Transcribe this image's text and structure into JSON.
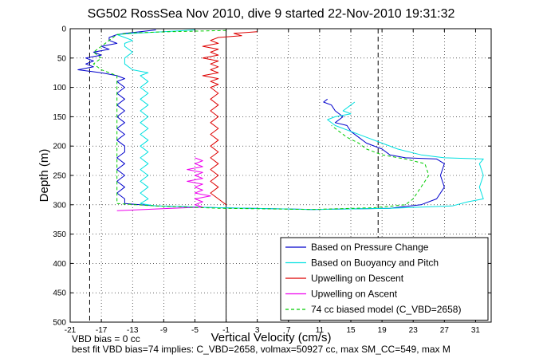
{
  "chart_data": {
    "type": "line",
    "title": "SG502 RossSea Nov 2010, dive 9 started 22-Nov-2010 19:31:32",
    "xlabel": "Vertical Velocity (cm/s)",
    "ylabel": "Depth (m)",
    "xlim": [
      -21,
      33
    ],
    "ylim": [
      500,
      0
    ],
    "x_ticks": [
      "-21",
      "-17",
      "-13",
      "-9",
      "-5",
      "-1",
      "3",
      "7",
      "11",
      "15",
      "19",
      "23",
      "27",
      "31"
    ],
    "y_ticks": [
      "0",
      "50",
      "100",
      "150",
      "200",
      "250",
      "300",
      "350",
      "400",
      "450",
      "500"
    ],
    "grid": true,
    "legend_position": "bottom-right",
    "reference_lines": [
      {
        "x": -1,
        "style": "solid"
      },
      {
        "x": -18.5,
        "style": "dashed"
      },
      {
        "x": 18.5,
        "style": "dashed"
      }
    ],
    "series": [
      {
        "name": "Based on Pressure Change",
        "color": "#0000cc",
        "style": "solid",
        "points": [
          [
            -10,
            2
          ],
          [
            -12,
            5
          ],
          [
            -14,
            8
          ],
          [
            -15,
            10
          ],
          [
            -16,
            15
          ],
          [
            -16,
            20
          ],
          [
            -15,
            25
          ],
          [
            -17,
            30
          ],
          [
            -16,
            35
          ],
          [
            -18,
            40
          ],
          [
            -17,
            45
          ],
          [
            -19,
            50
          ],
          [
            -18,
            55
          ],
          [
            -19,
            60
          ],
          [
            -18,
            65
          ],
          [
            -20,
            70
          ],
          [
            -17,
            75
          ],
          [
            -15,
            80
          ],
          [
            -14,
            85
          ],
          [
            -15,
            90
          ],
          [
            -14,
            100
          ],
          [
            -15,
            110
          ],
          [
            -14,
            120
          ],
          [
            -15,
            130
          ],
          [
            -14,
            140
          ],
          [
            -15,
            150
          ],
          [
            -14,
            160
          ],
          [
            -15,
            170
          ],
          [
            -14,
            180
          ],
          [
            -15,
            190
          ],
          [
            -14,
            200
          ],
          [
            -14,
            210
          ],
          [
            -15,
            220
          ],
          [
            -14,
            230
          ],
          [
            -15,
            240
          ],
          [
            -14,
            250
          ],
          [
            -15,
            260
          ],
          [
            -14,
            270
          ],
          [
            -15,
            280
          ],
          [
            -14,
            290
          ],
          [
            -14,
            298
          ],
          [
            -10,
            302
          ],
          [
            -2,
            305
          ],
          [
            10,
            308
          ],
          [
            20,
            306
          ],
          [
            24,
            300
          ],
          [
            26,
            290
          ],
          [
            27,
            270
          ],
          [
            26.5,
            250
          ],
          [
            27,
            230
          ],
          [
            26,
            222
          ],
          [
            22,
            220
          ],
          [
            20,
            215
          ],
          [
            19,
            205
          ],
          [
            17,
            195
          ],
          [
            16,
            185
          ],
          [
            15,
            175
          ],
          [
            14.5,
            165
          ],
          [
            13,
            160
          ],
          [
            14,
            150
          ],
          [
            13,
            140
          ],
          [
            12.5,
            130
          ],
          [
            11.5,
            125
          ],
          [
            12,
            120
          ]
        ]
      },
      {
        "name": "Based on Buoyancy and Pitch",
        "color": "#00e0e0",
        "style": "solid",
        "points": [
          [
            -5,
            2
          ],
          [
            -9,
            5
          ],
          [
            -13,
            8
          ],
          [
            -15,
            10
          ],
          [
            -14,
            15
          ],
          [
            -13,
            20
          ],
          [
            -14,
            25
          ],
          [
            -14,
            30
          ],
          [
            -13,
            40
          ],
          [
            -14,
            50
          ],
          [
            -14,
            60
          ],
          [
            -13,
            70
          ],
          [
            -11,
            75
          ],
          [
            -12,
            80
          ],
          [
            -11,
            90
          ],
          [
            -12,
            100
          ],
          [
            -11,
            110
          ],
          [
            -12,
            120
          ],
          [
            -11,
            130
          ],
          [
            -12,
            140
          ],
          [
            -11,
            150
          ],
          [
            -12,
            160
          ],
          [
            -11,
            170
          ],
          [
            -12,
            180
          ],
          [
            -11,
            190
          ],
          [
            -12,
            200
          ],
          [
            -11,
            210
          ],
          [
            -12,
            220
          ],
          [
            -11,
            230
          ],
          [
            -12,
            240
          ],
          [
            -11,
            250
          ],
          [
            -12,
            260
          ],
          [
            -11,
            270
          ],
          [
            -12,
            280
          ],
          [
            -11,
            290
          ],
          [
            -12,
            298
          ],
          [
            -10,
            302
          ],
          [
            -2,
            305
          ],
          [
            10,
            308
          ],
          [
            20,
            306
          ],
          [
            28,
            302
          ],
          [
            30,
            295
          ],
          [
            32,
            290
          ],
          [
            31.5,
            270
          ],
          [
            32,
            250
          ],
          [
            31.5,
            230
          ],
          [
            32,
            222
          ],
          [
            27,
            220
          ],
          [
            24,
            215
          ],
          [
            21,
            205
          ],
          [
            19,
            195
          ],
          [
            17,
            185
          ],
          [
            15,
            175
          ],
          [
            13,
            165
          ],
          [
            12,
            155
          ],
          [
            13,
            150
          ],
          [
            15,
            145
          ],
          [
            14,
            140
          ],
          [
            15,
            130
          ],
          [
            15.5,
            125
          ]
        ]
      },
      {
        "name": "Upwelling on Descent",
        "color": "#dd0000",
        "style": "solid",
        "points": [
          [
            3,
            5
          ],
          [
            0,
            8
          ],
          [
            1,
            12
          ],
          [
            -2,
            15
          ],
          [
            -3,
            20
          ],
          [
            -2,
            25
          ],
          [
            -4,
            30
          ],
          [
            -2,
            35
          ],
          [
            -3,
            40
          ],
          [
            -2,
            45
          ],
          [
            -4,
            50
          ],
          [
            -2,
            55
          ],
          [
            -3,
            60
          ],
          [
            -2,
            65
          ],
          [
            -3,
            70
          ],
          [
            -2,
            75
          ],
          [
            -4,
            80
          ],
          [
            -2,
            85
          ],
          [
            -3,
            90
          ],
          [
            -2,
            95
          ],
          [
            -3,
            100
          ],
          [
            -2,
            110
          ],
          [
            -3,
            120
          ],
          [
            -2,
            130
          ],
          [
            -3,
            140
          ],
          [
            -2,
            150
          ],
          [
            -3,
            160
          ],
          [
            -2,
            170
          ],
          [
            -3,
            180
          ],
          [
            -2,
            190
          ],
          [
            -3,
            200
          ],
          [
            -2,
            210
          ],
          [
            -3,
            220
          ],
          [
            -2,
            230
          ],
          [
            -3,
            240
          ],
          [
            -2,
            250
          ],
          [
            -3,
            260
          ],
          [
            -2,
            270
          ],
          [
            -3,
            280
          ],
          [
            -2,
            290
          ],
          [
            -1,
            300
          ]
        ]
      },
      {
        "name": "Upwelling on Ascent",
        "color": "#ee00ee",
        "style": "solid",
        "points": [
          [
            -15,
            310
          ],
          [
            -8,
            306
          ],
          [
            -4,
            304
          ],
          [
            -5,
            300
          ],
          [
            -4,
            295
          ],
          [
            -5,
            290
          ],
          [
            -3,
            285
          ],
          [
            -5,
            280
          ],
          [
            -4,
            275
          ],
          [
            -5,
            270
          ],
          [
            -4,
            265
          ],
          [
            -6,
            260
          ],
          [
            -4,
            255
          ],
          [
            -5,
            250
          ],
          [
            -4,
            245
          ],
          [
            -6,
            240
          ],
          [
            -4,
            235
          ],
          [
            -5,
            230
          ],
          [
            -4,
            225
          ],
          [
            -5,
            220
          ]
        ]
      },
      {
        "name": "74 cc biased model (C_VBD=2658)",
        "color": "#00cc00",
        "style": "dashed",
        "points": [
          [
            -1,
            3
          ],
          [
            -8,
            5
          ],
          [
            -13,
            7
          ],
          [
            -15,
            10
          ],
          [
            -16,
            20
          ],
          [
            -17,
            30
          ],
          [
            -18,
            40
          ],
          [
            -17,
            50
          ],
          [
            -18,
            60
          ],
          [
            -17,
            70
          ],
          [
            -15,
            80
          ],
          [
            -15,
            100
          ],
          [
            -15,
            150
          ],
          [
            -15,
            200
          ],
          [
            -15,
            250
          ],
          [
            -15,
            298
          ],
          [
            -10,
            302
          ],
          [
            -2,
            306
          ],
          [
            10,
            308
          ],
          [
            18,
            305
          ],
          [
            22,
            300
          ],
          [
            23,
            290
          ],
          [
            24,
            270
          ],
          [
            25,
            250
          ],
          [
            24.5,
            230
          ],
          [
            22,
            222
          ],
          [
            19,
            215
          ],
          [
            17,
            205
          ],
          [
            16,
            195
          ],
          [
            14.5,
            185
          ],
          [
            13.5,
            175
          ],
          [
            12.5,
            165
          ]
        ]
      }
    ]
  },
  "notes": {
    "line1": "VBD bias = 0 cc",
    "line2": "best fit VBD bias=74 implies: C_VBD=2658, volmax=50927 cc, max SM_CC=549, max M"
  }
}
